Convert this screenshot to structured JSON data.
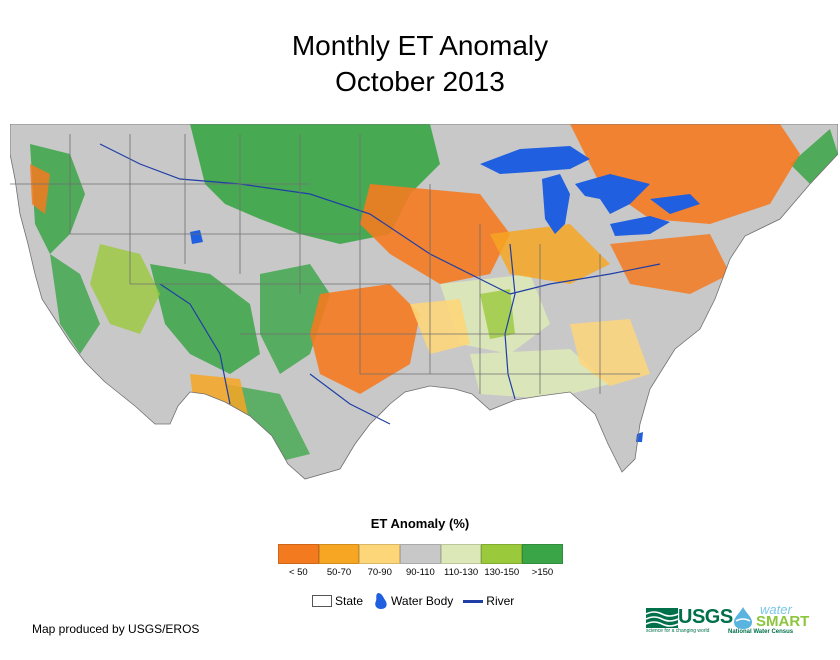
{
  "title": {
    "line1": "Monthly ET Anomaly",
    "line2": "October 2013"
  },
  "legend": {
    "title": "ET Anomaly (%)",
    "classes": [
      {
        "label": "< 50",
        "color": "#f47a20"
      },
      {
        "label": "50-70",
        "color": "#f6a623"
      },
      {
        "label": "70-90",
        "color": "#fdd67a"
      },
      {
        "label": "90-110",
        "color": "#c8c8c8"
      },
      {
        "label": "110-130",
        "color": "#dde8b8"
      },
      {
        "label": "130-150",
        "color": "#9bc93c"
      },
      {
        "label": ">150",
        "color": "#3aa546"
      }
    ]
  },
  "map_key": {
    "state_label": "State",
    "water_label": "Water Body",
    "river_label": "River",
    "water_color": "#1f5fe0",
    "river_color": "#1f3ea6"
  },
  "credit": "Map produced by USGS/EROS",
  "logos": {
    "usgs": "USGS",
    "usgs_tagline": "science for a changing world",
    "water": "water",
    "smart": "SMART",
    "census": "National Water Census"
  }
}
